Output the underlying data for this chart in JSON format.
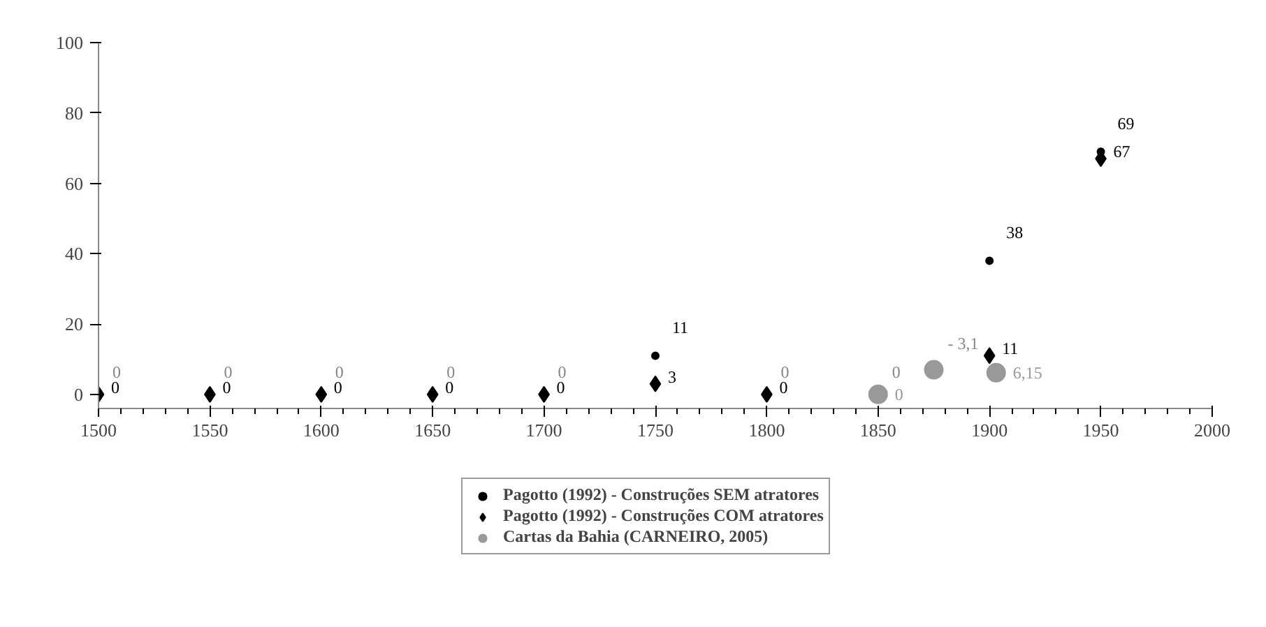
{
  "chart_data": {
    "type": "scatter",
    "xlim": [
      1500,
      2000
    ],
    "xticks": [
      1500,
      1550,
      1600,
      1650,
      1700,
      1750,
      1800,
      1850,
      1900,
      1950,
      2000
    ],
    "ylim": [
      -4,
      100
    ],
    "yticks": [
      0,
      20,
      40,
      60,
      80,
      100
    ],
    "legend": "bottom",
    "grid": false,
    "series": [
      {
        "name": "Pagotto (1992) - Construções SEM atratores",
        "color": "#000000",
        "marker": "circle",
        "x": [
          1750,
          1900,
          1950
        ],
        "values": [
          11,
          38,
          69
        ],
        "value_labels": [
          "11",
          "38",
          "69"
        ]
      },
      {
        "name": "Pagotto (1992) - Construções COM atratores",
        "color": "#000000",
        "marker": "diamond",
        "x": [
          1500,
          1550,
          1600,
          1650,
          1700,
          1750,
          1800,
          1900,
          1950
        ],
        "values": [
          0,
          0,
          0,
          0,
          0,
          3,
          0,
          11,
          67
        ],
        "value_labels": [
          "0",
          "0",
          "0",
          "0",
          "0",
          "3",
          "0",
          "11",
          "67"
        ]
      },
      {
        "name": "Cartas da Bahia (CARNEIRO, 2005)",
        "color": "#999999",
        "marker": "circle",
        "x": [
          1850,
          1875,
          1903
        ],
        "values": [
          0,
          7,
          6.15
        ],
        "value_labels": [
          "0",
          null,
          "6,15"
        ]
      }
    ],
    "annotations": [
      {
        "text": "0",
        "x": 1500,
        "y": 0
      },
      {
        "text": "0",
        "x": 1550,
        "y": 0
      },
      {
        "text": "0",
        "x": 1600,
        "y": 0
      },
      {
        "text": "0",
        "x": 1650,
        "y": 0
      },
      {
        "text": "0",
        "x": 1700,
        "y": 0
      },
      {
        "text": "0",
        "x": 1800,
        "y": 0
      },
      {
        "text": "0",
        "x": 1850,
        "y": 0
      },
      {
        "text": "- 3,1",
        "x": 1875,
        "y": 7
      }
    ]
  }
}
